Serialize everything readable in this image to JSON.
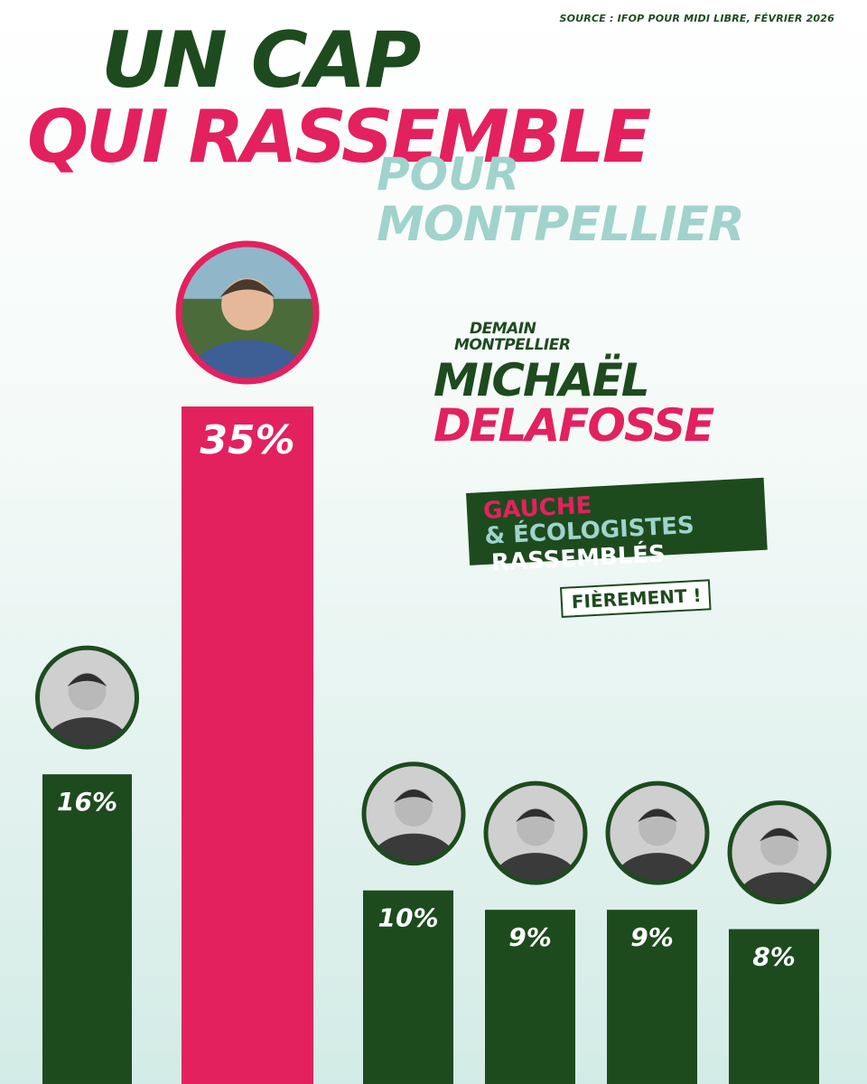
{
  "source": "SOURCE : IFOP POUR MIDI LIBRE, FÉVRIER 2026",
  "headline": {
    "line1": "UN CAP",
    "line2": "QUI RASSEMBLE",
    "line3": "POUR",
    "line4": "MONTPELLIER"
  },
  "candidate_block": {
    "slogan_line1": "DEMAIN",
    "slogan_line2": "MONTPELLIER",
    "first_name": "MICHAËL",
    "last_name": "DELAFOSSE"
  },
  "badge": {
    "line1": "GAUCHE",
    "line2": "& ÉCOLOGISTES",
    "line3": "RASSEMBLÉS",
    "line4": "FIÈREMENT !"
  },
  "colors": {
    "dark_green": "#1d4b1e",
    "pink": "#e3215f",
    "teal": "#9fd3cc",
    "white": "#ffffff"
  },
  "chart_data": {
    "type": "bar",
    "categories": [
      "",
      "",
      "",
      "",
      "",
      ""
    ],
    "values": [
      16,
      35,
      10,
      9,
      9,
      8
    ],
    "labels": [
      "16%",
      "35%",
      "10%",
      "9%",
      "9%",
      "8%"
    ],
    "unit": "%",
    "highlight_index": 1,
    "bar_colors": [
      "#1d4b1e",
      "#e3215f",
      "#1d4b1e",
      "#1d4b1e",
      "#1d4b1e",
      "#1d4b1e"
    ],
    "has_photo_markers": true,
    "axis_visible": false,
    "grid": false,
    "legend": "none"
  }
}
